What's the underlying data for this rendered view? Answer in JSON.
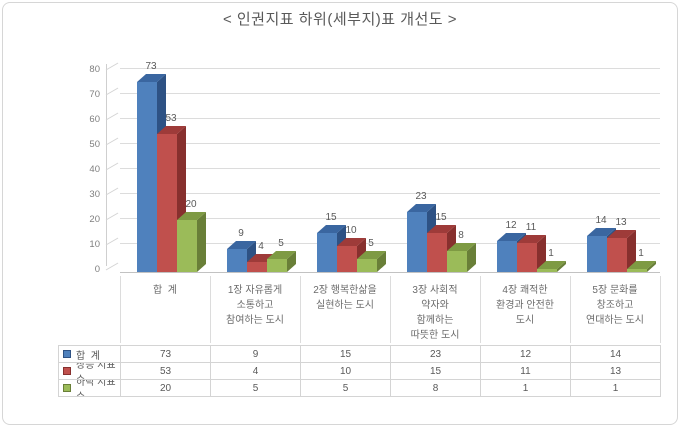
{
  "chart_data": {
    "type": "bar",
    "style": "3d-clustered-column",
    "title": "< 인권지표 하위(세부지)표 개선도 >",
    "categories": [
      "합  계",
      "1장 자유롭게 소통하고 참여하는 도시",
      "2장 행복한삶을 실현하는 도시",
      "3장 사회적 약자와 함께하는 따뜻한 도시",
      "4장 쾌적한 환경과 안전한 도시",
      "5장 문화를 창조하고 연대하는 도시"
    ],
    "categories_display": [
      [
        "합  계"
      ],
      [
        "1장 자유롭게",
        "소통하고",
        "참여하는 도시"
      ],
      [
        "2장 행복한삶을",
        "실현하는 도시"
      ],
      [
        "3장 사회적",
        "약자와",
        "함께하는",
        "따뜻한 도시"
      ],
      [
        "4장 쾌적한",
        "환경과 안전한",
        "도시"
      ],
      [
        "5장 문화를",
        "창조하고",
        "연대하는 도시"
      ]
    ],
    "series": [
      {
        "name": "합  계",
        "color": "#4F81BD",
        "color_top": "#3A66A0",
        "color_side": "#2E5284",
        "values": [
          73,
          9,
          15,
          23,
          12,
          14
        ]
      },
      {
        "name": "상승 지표수",
        "color": "#C0504D",
        "color_top": "#9E3B39",
        "color_side": "#87302E",
        "values": [
          53,
          4,
          10,
          15,
          11,
          13
        ]
      },
      {
        "name": "하락 지표수",
        "color": "#9BBB59",
        "color_top": "#7E9A43",
        "color_side": "#697F38",
        "values": [
          20,
          5,
          5,
          8,
          1,
          1
        ]
      }
    ],
    "yticks": [
      0,
      10,
      20,
      30,
      40,
      50,
      60,
      70,
      80
    ],
    "ylim": [
      0,
      80
    ],
    "ytick_step": 10,
    "grid": true,
    "data_labels": true,
    "legend_position": "bottom-table"
  },
  "colors": {
    "background": "#FFFFFF",
    "frame_border": "#D6D6D6",
    "gridline": "#DCDCDC",
    "axis_line": "#C2C2C2",
    "axis_text": "#7F7F7F",
    "label_text": "#595959",
    "table_border": "#D4D4D4"
  }
}
